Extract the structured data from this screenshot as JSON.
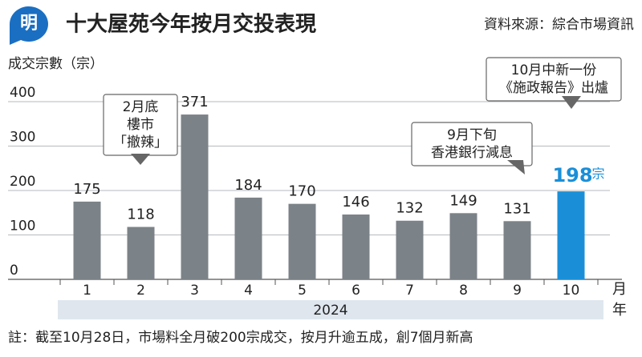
{
  "chart_data": {
    "type": "bar",
    "logo": "明",
    "title": "十大屋苑今年按月交投表現",
    "source": "資料來源：綜合市場資訊",
    "y_label": "成交宗數（宗）",
    "categories": [
      "1",
      "2",
      "3",
      "4",
      "5",
      "6",
      "7",
      "8",
      "9",
      "10"
    ],
    "values": [
      175,
      118,
      371,
      184,
      170,
      146,
      132,
      149,
      131,
      198
    ],
    "colors": [
      "#7b8288",
      "#7b8288",
      "#7b8288",
      "#7b8288",
      "#7b8288",
      "#7b8288",
      "#7b8288",
      "#7b8288",
      "#7b8288",
      "#1a8fd8"
    ],
    "highlight_unit": "宗",
    "x_unit": "月",
    "year_unit": "年",
    "year": "2024",
    "ylim": [
      0,
      400
    ],
    "yticks": [
      0,
      100,
      200,
      300,
      400
    ],
    "grid": true,
    "annotations": [
      {
        "lines": [
          "2月底",
          "樓市",
          "「撤辣」"
        ]
      },
      {
        "lines": [
          "9月下旬",
          "香港銀行減息"
        ]
      },
      {
        "lines": [
          "10月中新一份",
          "《施政報告》出爐"
        ]
      }
    ],
    "footnote": "註：截至10月28日，市場料全月破200宗成交，按月升逾五成，創7個月新高"
  }
}
